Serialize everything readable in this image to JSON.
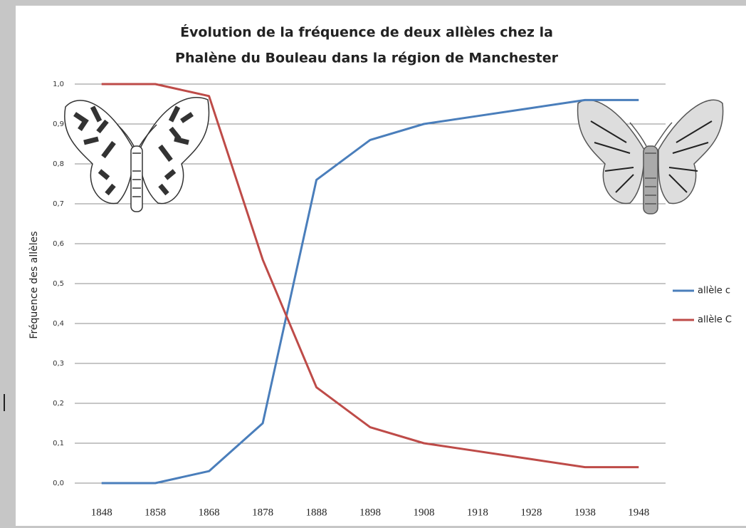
{
  "chart_data": {
    "type": "line",
    "title": [
      "Évolution de la fréquence de deux allèles chez la",
      "Phalène du Bouleau dans la région de Manchester"
    ],
    "y_label": "Fréquence des allèles",
    "categories": [
      "1848",
      "1858",
      "1868",
      "1878",
      "1888",
      "1898",
      "1908",
      "1918",
      "1928",
      "1938",
      "1948"
    ],
    "series": [
      {
        "name": "allèle c",
        "color": "#4a7ebb",
        "values": [
          0.0,
          0.0,
          0.03,
          0.15,
          0.76,
          0.86,
          0.9,
          0.92,
          0.94,
          0.96,
          0.96
        ]
      },
      {
        "name": "allèle C",
        "color": "#be4b48",
        "values": [
          1.0,
          1.0,
          0.97,
          0.56,
          0.24,
          0.14,
          0.1,
          0.08,
          0.06,
          0.04,
          0.04
        ]
      }
    ],
    "ylim": [
      0,
      1
    ],
    "yticks": [
      {
        "value": 0,
        "label": "0,0"
      },
      {
        "value": 0.1,
        "label": "0,1"
      },
      {
        "value": 0.2,
        "label": "0,2"
      },
      {
        "value": 0.3,
        "label": "0,3"
      },
      {
        "value": 0.4,
        "label": "0,4"
      },
      {
        "value": 0.5,
        "label": "0,5"
      },
      {
        "value": 0.6,
        "label": "0,6"
      },
      {
        "value": 0.7,
        "label": "0,7"
      },
      {
        "value": 0.8,
        "label": "0,8"
      },
      {
        "value": 0.9,
        "label": "0,9"
      },
      {
        "value": 1,
        "label": "1,0"
      }
    ],
    "grid": true,
    "legend": "right"
  }
}
